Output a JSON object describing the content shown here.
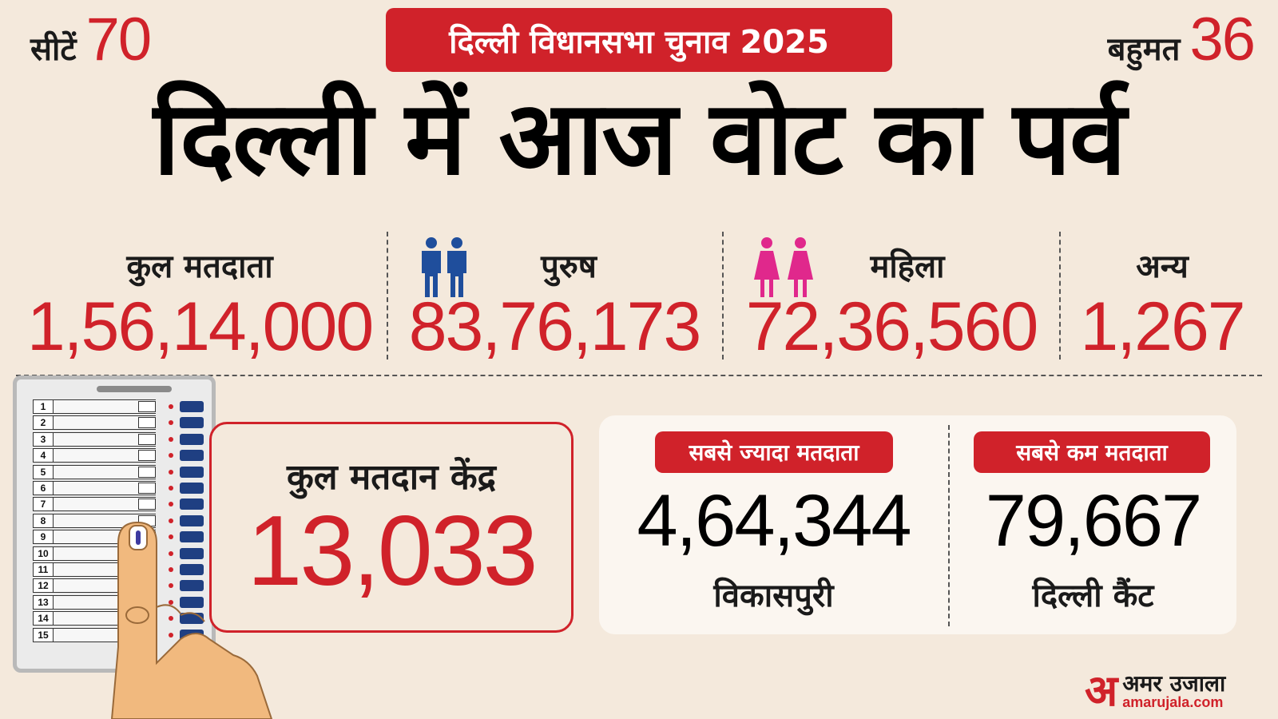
{
  "header": {
    "seats_label": "सीटें",
    "seats_value": "70",
    "majority_label": "बहुमत",
    "majority_value": "36",
    "banner": "दिल्ली विधानसभा चुनाव 2025",
    "headline": "दिल्ली में आज वोट का पर्व"
  },
  "voters": {
    "total_label": "कुल मतदाता",
    "total_value": "1,56,14,000",
    "male_label": "पुरुष",
    "male_value": "83,76,173",
    "female_label": "महिला",
    "female_value": "72,36,560",
    "other_label": "अन्य",
    "other_value": "1,267"
  },
  "icons": {
    "male": "men-pair-icon",
    "female": "women-pair-icon",
    "evm": "evm-machine-icon",
    "finger": "inked-finger-icon"
  },
  "evm": {
    "rows": [
      "1",
      "2",
      "3",
      "4",
      "5",
      "6",
      "7",
      "8",
      "9",
      "10",
      "11",
      "12",
      "13",
      "14",
      "15"
    ]
  },
  "polling_centres": {
    "label": "कुल मतदान केंद्र",
    "value": "13,033"
  },
  "most_voters": {
    "tag": "सबसे ज्यादा मतदाता",
    "value": "4,64,344",
    "place": "विकासपुरी"
  },
  "least_voters": {
    "tag": "सबसे कम मतदाता",
    "value": "79,667",
    "place": "दिल्ली कैंट"
  },
  "logo": {
    "mark": "अ",
    "brand": "अमर उजाला",
    "url": "amarujala.com"
  },
  "colors": {
    "accent": "#d0222a",
    "background": "#f4e9dc",
    "male_icon": "#1f4e9c",
    "female_icon": "#e0288c"
  }
}
